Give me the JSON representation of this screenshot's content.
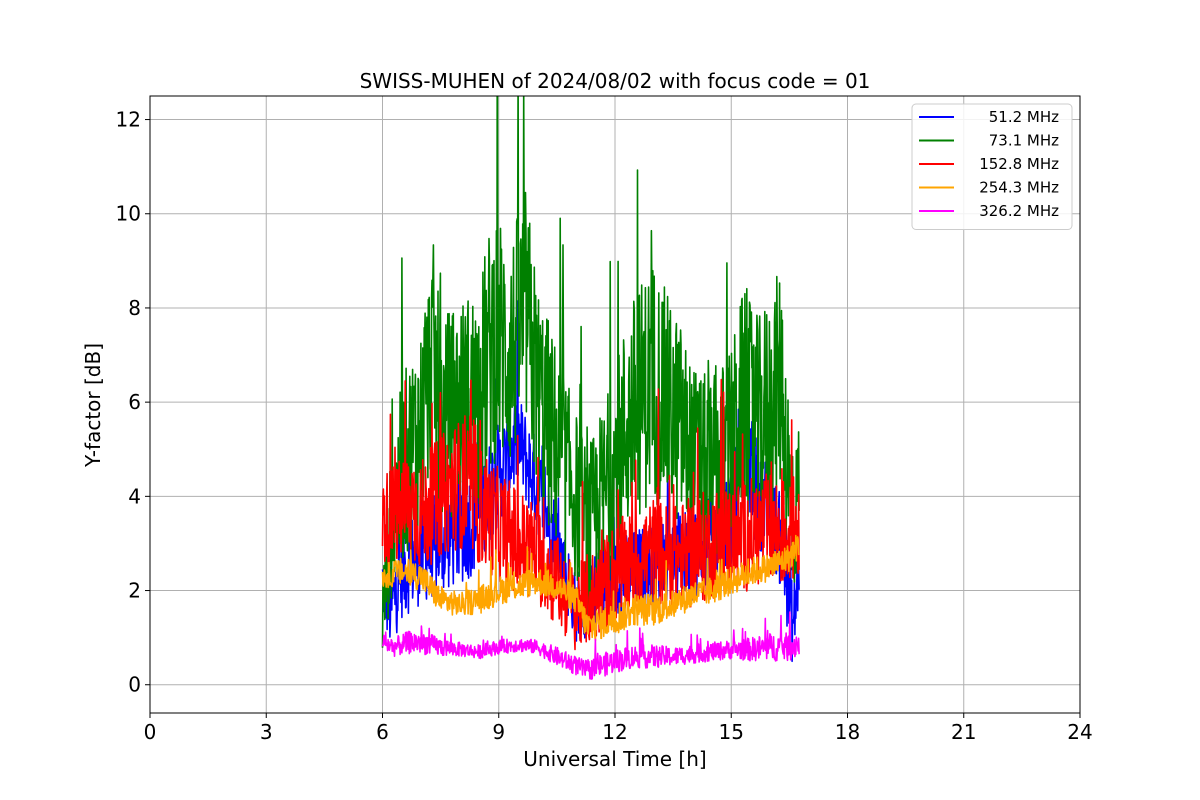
{
  "chart_data": {
    "type": "line",
    "title": "SWISS-MUHEN of 2024/08/02 with focus code = 01",
    "xlabel": "Universal Time [h]",
    "ylabel": "Y-factor [dB]",
    "xlim": [
      0,
      24
    ],
    "ylim": [
      -0.6,
      12.5
    ],
    "xticks": [
      0,
      3,
      6,
      9,
      12,
      15,
      18,
      21,
      24
    ],
    "yticks": [
      0,
      2,
      4,
      6,
      8,
      10,
      12
    ],
    "grid": true,
    "legend_position": "top-right",
    "series": [
      {
        "name": "51.2 MHz",
        "color": "#0000ff",
        "x": [
          6.0,
          6.2,
          6.5,
          7.0,
          7.5,
          8.0,
          8.5,
          9.0,
          9.5,
          10.0,
          10.5,
          11.0,
          11.3,
          11.5,
          12.0,
          12.5,
          13.0,
          13.5,
          14.0,
          14.5,
          15.0,
          15.3,
          15.6,
          16.0,
          16.3,
          16.6,
          16.75
        ],
        "y": [
          2.2,
          1.6,
          2.4,
          2.8,
          3.0,
          3.3,
          3.6,
          4.5,
          5.2,
          4.2,
          3.0,
          1.6,
          1.8,
          2.0,
          2.2,
          2.4,
          2.6,
          2.7,
          2.8,
          3.0,
          3.6,
          5.8,
          4.2,
          3.6,
          3.0,
          1.2,
          2.6
        ],
        "amp": [
          0.8,
          0.9,
          1.0,
          1.1,
          1.1,
          1.2,
          1.2,
          1.1,
          1.0,
          1.0,
          0.9,
          0.7,
          0.8,
          0.8,
          0.9,
          0.9,
          0.9,
          0.9,
          1.0,
          1.0,
          1.2,
          1.2,
          1.2,
          1.0,
          1.0,
          0.9,
          0.9
        ]
      },
      {
        "name": "73.1 MHz",
        "color": "#008000",
        "x": [
          6.0,
          6.2,
          6.5,
          7.0,
          7.3,
          7.5,
          8.0,
          8.5,
          8.9,
          9.3,
          9.7,
          10.0,
          10.5,
          11.0,
          11.3,
          11.5,
          12.0,
          12.3,
          12.6,
          13.0,
          13.3,
          13.7,
          14.0,
          14.5,
          15.0,
          15.3,
          15.7,
          16.0,
          16.3,
          16.6,
          16.75
        ],
        "y": [
          1.5,
          3.2,
          4.5,
          5.5,
          7.0,
          5.5,
          6.0,
          6.2,
          7.5,
          7.0,
          8.0,
          6.2,
          5.0,
          4.0,
          3.0,
          3.5,
          4.5,
          5.5,
          6.0,
          6.5,
          6.0,
          5.5,
          4.8,
          4.5,
          5.0,
          6.0,
          5.5,
          5.8,
          6.5,
          3.0,
          4.5
        ],
        "amp": [
          1.0,
          1.5,
          2.0,
          2.2,
          2.5,
          2.3,
          2.2,
          2.4,
          2.8,
          2.5,
          2.6,
          2.4,
          2.2,
          1.8,
          2.0,
          2.0,
          2.2,
          2.4,
          2.5,
          2.6,
          2.4,
          2.2,
          2.0,
          2.0,
          2.2,
          2.4,
          2.3,
          2.6,
          2.4,
          1.6,
          1.2
        ]
      },
      {
        "name": "152.8 MHz",
        "color": "#ff0000",
        "x": [
          6.0,
          6.3,
          6.7,
          7.0,
          7.5,
          8.0,
          8.5,
          9.0,
          9.5,
          10.0,
          10.5,
          11.0,
          11.3,
          11.6,
          12.0,
          12.5,
          13.0,
          13.5,
          14.0,
          14.5,
          15.0,
          15.5,
          16.0,
          16.4,
          16.75
        ],
        "y": [
          3.5,
          3.6,
          3.8,
          3.6,
          4.0,
          4.3,
          3.8,
          3.4,
          3.0,
          2.8,
          2.2,
          1.6,
          1.8,
          2.0,
          2.4,
          2.6,
          2.8,
          2.7,
          2.8,
          3.0,
          3.1,
          3.2,
          3.3,
          3.2,
          3.4
        ],
        "amp": [
          1.0,
          1.1,
          1.2,
          1.2,
          1.3,
          1.4,
          1.3,
          1.2,
          1.2,
          1.1,
          1.0,
          0.9,
          1.0,
          1.0,
          1.1,
          1.1,
          1.2,
          1.1,
          1.2,
          1.2,
          1.2,
          1.2,
          1.2,
          1.2,
          1.1
        ]
      },
      {
        "name": "254.3 MHz",
        "color": "#ffa500",
        "x": [
          6.0,
          6.5,
          7.0,
          7.5,
          8.0,
          8.5,
          9.0,
          9.5,
          10.0,
          10.5,
          11.0,
          11.3,
          11.6,
          12.0,
          12.5,
          13.0,
          13.5,
          14.0,
          14.5,
          15.0,
          15.5,
          16.0,
          16.5,
          16.75
        ],
        "y": [
          2.3,
          2.4,
          2.3,
          1.8,
          1.7,
          1.8,
          2.0,
          2.1,
          2.2,
          2.1,
          1.8,
          1.2,
          1.3,
          1.4,
          1.6,
          1.6,
          1.7,
          1.9,
          2.0,
          2.2,
          2.4,
          2.5,
          2.7,
          3.0
        ],
        "amp": [
          0.25,
          0.3,
          0.3,
          0.3,
          0.25,
          0.3,
          0.3,
          0.3,
          0.3,
          0.3,
          0.3,
          0.35,
          0.35,
          0.35,
          0.35,
          0.35,
          0.3,
          0.3,
          0.3,
          0.3,
          0.3,
          0.3,
          0.3,
          0.3
        ]
      },
      {
        "name": "326.2 MHz",
        "color": "#ff00ff",
        "x": [
          6.0,
          6.3,
          6.7,
          7.0,
          7.5,
          8.0,
          8.5,
          9.0,
          9.5,
          10.0,
          10.5,
          11.0,
          11.3,
          11.6,
          12.0,
          12.5,
          13.0,
          13.5,
          14.0,
          14.5,
          15.0,
          15.5,
          16.0,
          16.5,
          16.75
        ],
        "y": [
          0.9,
          0.8,
          0.9,
          0.9,
          0.8,
          0.75,
          0.7,
          0.8,
          0.85,
          0.8,
          0.6,
          0.4,
          0.3,
          0.4,
          0.5,
          0.6,
          0.6,
          0.6,
          0.65,
          0.7,
          0.75,
          0.75,
          0.8,
          0.8,
          0.9
        ],
        "amp": [
          0.2,
          0.2,
          0.25,
          0.25,
          0.2,
          0.15,
          0.15,
          0.15,
          0.15,
          0.15,
          0.2,
          0.2,
          0.2,
          0.25,
          0.25,
          0.25,
          0.25,
          0.2,
          0.2,
          0.2,
          0.2,
          0.25,
          0.3,
          0.3,
          0.3
        ]
      }
    ]
  }
}
